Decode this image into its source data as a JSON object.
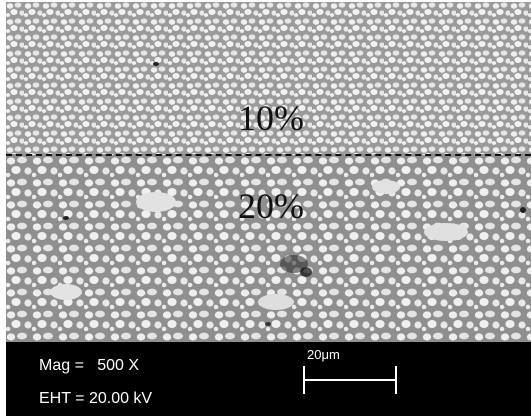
{
  "micrograph": {
    "regions": [
      {
        "label": "10%"
      },
      {
        "label": "20%"
      }
    ]
  },
  "info": {
    "magnification": "Mag =   500 X",
    "eht": "EHT = 20.00 kV"
  },
  "scale_bar": {
    "label": "20μm"
  }
}
